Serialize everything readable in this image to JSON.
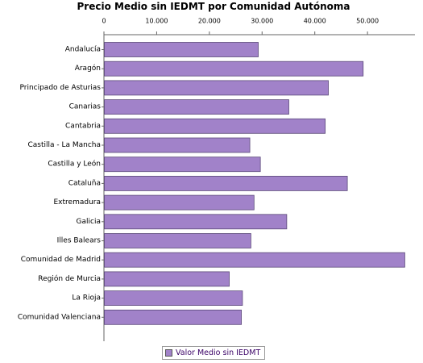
{
  "colors": {
    "bar_fill": "#a182c9",
    "bar_stroke": "#5c4a7a",
    "axis": "#666666"
  },
  "chart_data": {
    "type": "bar",
    "orientation": "horizontal",
    "title": "Precio Medio sin IEDMT por Comunidad Autónoma",
    "xlabel": "",
    "ylabel": "",
    "xlim": [
      0,
      59000
    ],
    "x_ticks": [
      0,
      10000,
      20000,
      30000,
      40000,
      50000
    ],
    "x_tick_labels": [
      "0",
      "10.000",
      "20.000",
      "30.000",
      "40.000",
      "50.000"
    ],
    "x_axis_position": "top",
    "grid": false,
    "legend_position": "bottom-center",
    "categories": [
      "Andalucía",
      "Aragón",
      "Principado de Asturias",
      "Canarias",
      "Cantabria",
      "Castilla - La Mancha",
      "Castilla y León",
      "Cataluña",
      "Extremadura",
      "Galicia",
      "Illes Balears",
      "Comunidad de Madrid",
      "Región de Murcia",
      "La Rioja",
      "Comunidad Valenciana"
    ],
    "series": [
      {
        "name": "Valor Medio sin IEDMT",
        "values": [
          29200,
          49100,
          42500,
          35000,
          41900,
          27600,
          29600,
          46100,
          28400,
          34600,
          27800,
          57000,
          23700,
          26200,
          26000
        ]
      }
    ]
  }
}
